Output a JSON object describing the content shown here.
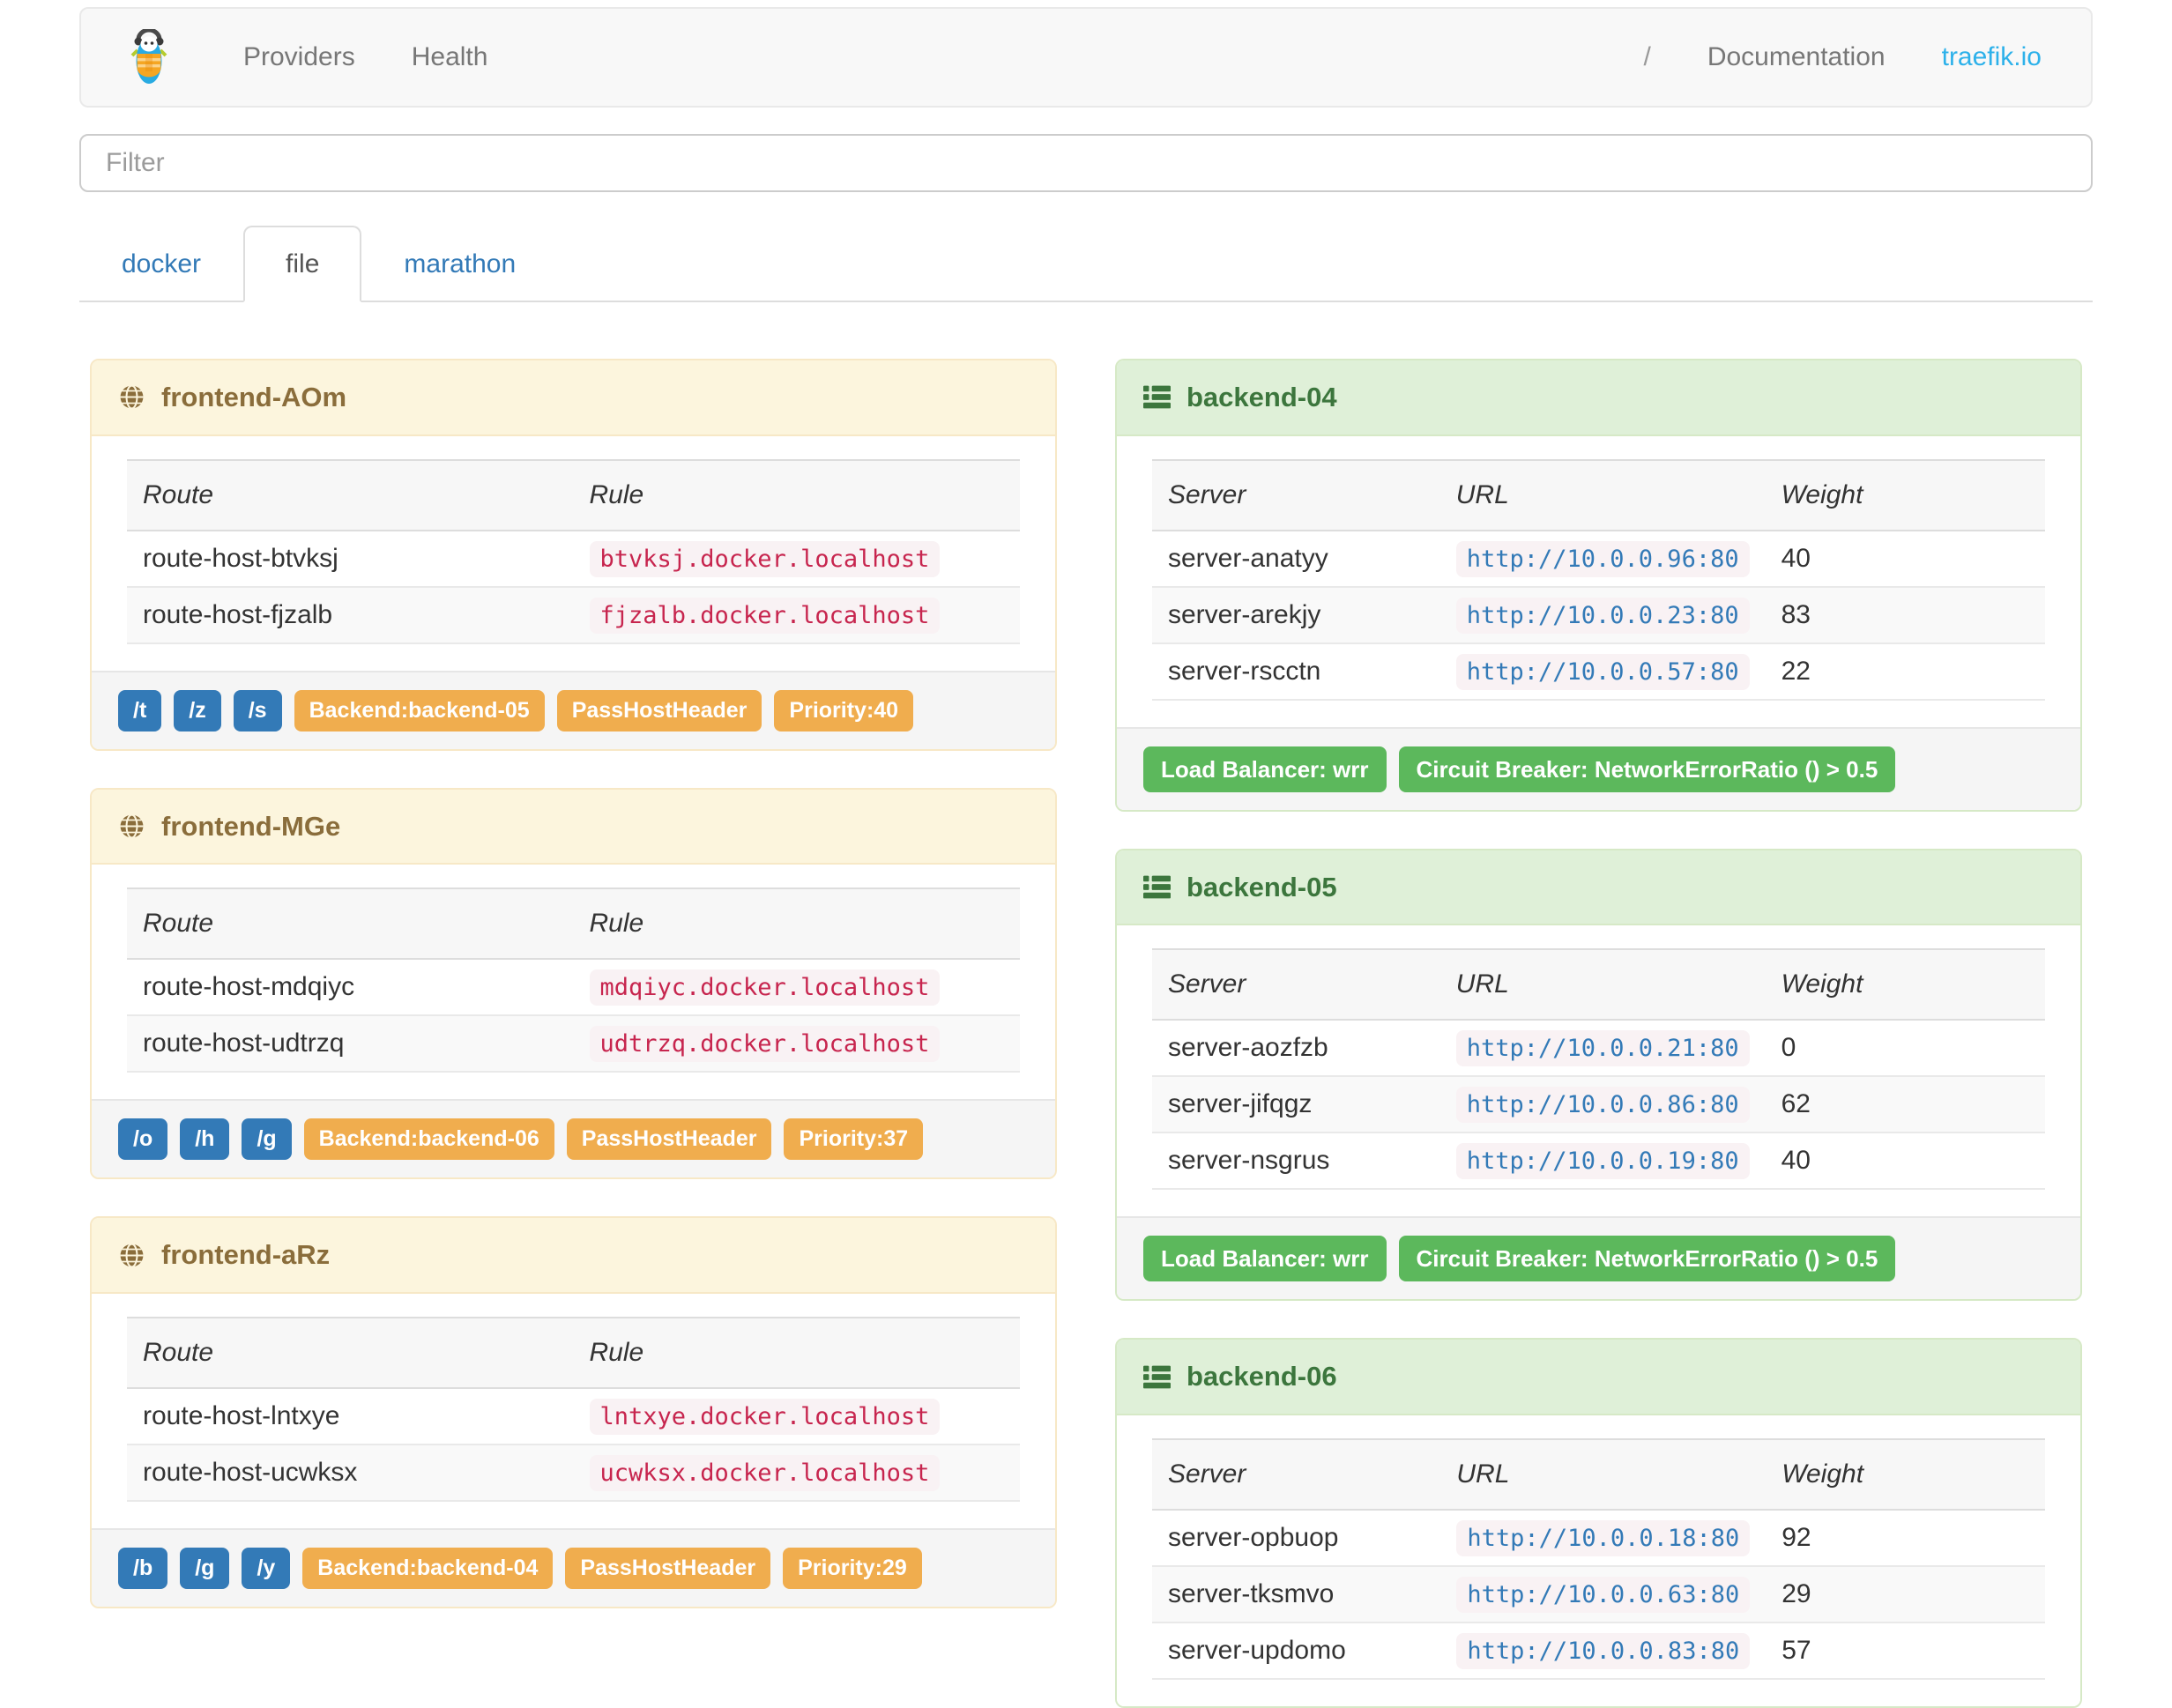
{
  "navbar": {
    "brand_icon": "traefik-logo",
    "links": [
      "Providers",
      "Health"
    ],
    "separator": "/",
    "documentation": "Documentation",
    "site": "traefik.io"
  },
  "filter": {
    "placeholder": "Filter"
  },
  "tabs": [
    {
      "label": "docker",
      "active": false
    },
    {
      "label": "file",
      "active": true
    },
    {
      "label": "marathon",
      "active": false
    }
  ],
  "frontend_columns": [
    "Route",
    "Rule"
  ],
  "backend_columns": [
    "Server",
    "URL",
    "Weight"
  ],
  "frontends": [
    {
      "title": "frontend-AOm",
      "icon": "globe-icon",
      "routes": [
        {
          "route": "route-host-btvksj",
          "rule": "btvksj.docker.localhost"
        },
        {
          "route": "route-host-fjzalb",
          "rule": "fjzalb.docker.localhost"
        }
      ],
      "path_badges": [
        "/t",
        "/z",
        "/s"
      ],
      "badges": [
        "Backend:backend-05",
        "PassHostHeader",
        "Priority:40"
      ]
    },
    {
      "title": "frontend-MGe",
      "icon": "globe-icon",
      "routes": [
        {
          "route": "route-host-mdqiyc",
          "rule": "mdqiyc.docker.localhost"
        },
        {
          "route": "route-host-udtrzq",
          "rule": "udtrzq.docker.localhost"
        }
      ],
      "path_badges": [
        "/o",
        "/h",
        "/g"
      ],
      "badges": [
        "Backend:backend-06",
        "PassHostHeader",
        "Priority:37"
      ]
    },
    {
      "title": "frontend-aRz",
      "icon": "globe-icon",
      "routes": [
        {
          "route": "route-host-lntxye",
          "rule": "lntxye.docker.localhost"
        },
        {
          "route": "route-host-ucwksx",
          "rule": "ucwksx.docker.localhost"
        }
      ],
      "path_badges": [
        "/b",
        "/g",
        "/y"
      ],
      "badges": [
        "Backend:backend-04",
        "PassHostHeader",
        "Priority:29"
      ]
    }
  ],
  "backends": [
    {
      "title": "backend-04",
      "icon": "server-icon",
      "servers": [
        {
          "server": "server-anatyy",
          "url": "http://10.0.0.96:80",
          "weight": "40"
        },
        {
          "server": "server-arekjy",
          "url": "http://10.0.0.23:80",
          "weight": "83"
        },
        {
          "server": "server-rscctn",
          "url": "http://10.0.0.57:80",
          "weight": "22"
        }
      ],
      "footer_badges": [
        "Load Balancer: wrr",
        "Circuit Breaker: NetworkErrorRatio () > 0.5"
      ]
    },
    {
      "title": "backend-05",
      "icon": "server-icon",
      "servers": [
        {
          "server": "server-aozfzb",
          "url": "http://10.0.0.21:80",
          "weight": "0"
        },
        {
          "server": "server-jifqgz",
          "url": "http://10.0.0.86:80",
          "weight": "62"
        },
        {
          "server": "server-nsgrus",
          "url": "http://10.0.0.19:80",
          "weight": "40"
        }
      ],
      "footer_badges": [
        "Load Balancer: wrr",
        "Circuit Breaker: NetworkErrorRatio () > 0.5"
      ]
    },
    {
      "title": "backend-06",
      "icon": "server-icon",
      "servers": [
        {
          "server": "server-opbuop",
          "url": "http://10.0.0.18:80",
          "weight": "92"
        },
        {
          "server": "server-tksmvo",
          "url": "http://10.0.0.63:80",
          "weight": "29"
        },
        {
          "server": "server-updomo",
          "url": "http://10.0.0.83:80",
          "weight": "57"
        }
      ],
      "footer_badges": []
    }
  ],
  "colors": {
    "brand_link": "#2db1ea",
    "label_primary": "#337ab7",
    "label_warning": "#f0ad4e",
    "label_success": "#5cb85c",
    "frontend_title": "#8a6d3b",
    "backend_title": "#3c763d",
    "rule_code": "#c7254e",
    "url_code": "#337ab7"
  }
}
